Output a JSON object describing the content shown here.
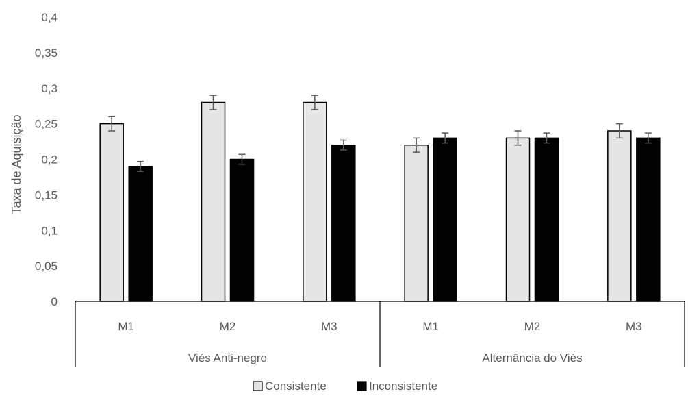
{
  "chart_data": {
    "type": "bar",
    "ylabel": "Taxa de Aquisição",
    "ylim": [
      0,
      0.4
    ],
    "yticks": [
      "0",
      "0,05",
      "0,1",
      "0,15",
      "0,2",
      "0,25",
      "0,3",
      "0,35",
      "0,4"
    ],
    "ytick_values": [
      0,
      0.05,
      0.1,
      0.15,
      0.2,
      0.25,
      0.3,
      0.35,
      0.4
    ],
    "grid": false,
    "legend_position": "bottom",
    "groups": [
      {
        "label": "Viés Anti-negro",
        "categories": [
          "M1",
          "M2",
          "M3"
        ]
      },
      {
        "label": "Alternância do Viés",
        "categories": [
          "M1",
          "M2",
          "M3"
        ]
      }
    ],
    "series": [
      {
        "name": "Consistente",
        "color": "#e7e6e6",
        "values": [
          0.25,
          0.28,
          0.28,
          0.22,
          0.23,
          0.24
        ],
        "errors": [
          0.01,
          0.01,
          0.01,
          0.01,
          0.01,
          0.01
        ]
      },
      {
        "name": "Inconsistente",
        "color": "#000000",
        "values": [
          0.19,
          0.2,
          0.22,
          0.23,
          0.23,
          0.23
        ],
        "errors": [
          0.007,
          0.007,
          0.007,
          0.007,
          0.007,
          0.007
        ]
      }
    ]
  }
}
